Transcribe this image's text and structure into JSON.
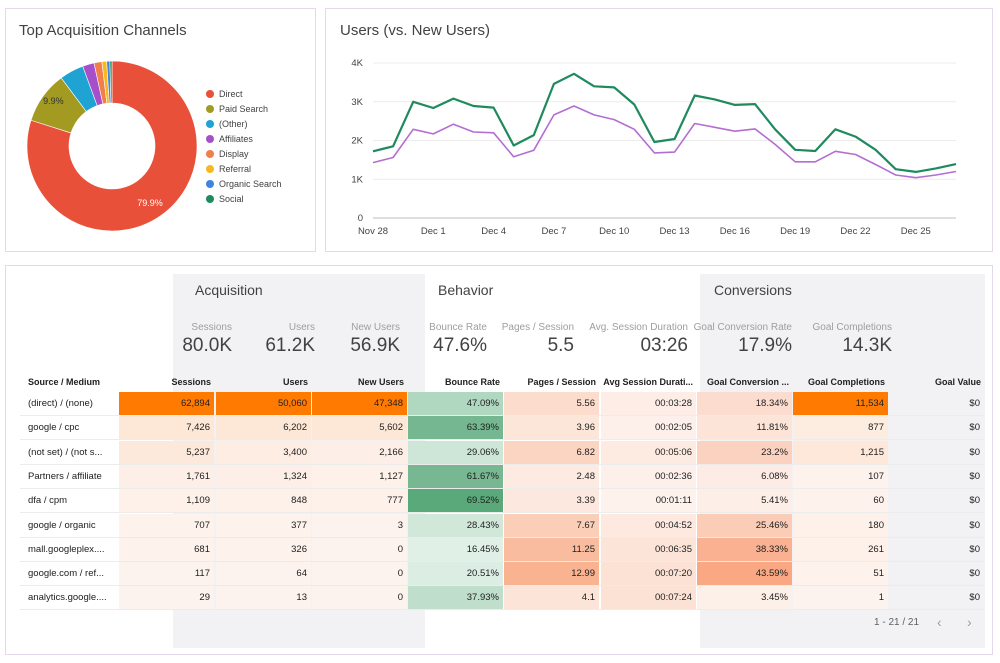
{
  "donut": {
    "title": "Top Acquisition Channels",
    "slices": [
      {
        "name": "Direct",
        "value": 79.9,
        "color": "#e8503a",
        "label": "79.9%"
      },
      {
        "name": "Paid Search",
        "value": 9.9,
        "color": "#a39a22",
        "label": "9.9%"
      },
      {
        "name": "(Other)",
        "value": 4.6,
        "color": "#1ea3d2",
        "label": ""
      },
      {
        "name": "Affiliates",
        "value": 2.2,
        "color": "#a64fc9",
        "label": ""
      },
      {
        "name": "Display",
        "value": 1.5,
        "color": "#f07f4a",
        "label": ""
      },
      {
        "name": "Referral",
        "value": 0.9,
        "color": "#f7b821",
        "label": ""
      },
      {
        "name": "Organic Search",
        "value": 0.6,
        "color": "#3f84e0",
        "label": ""
      },
      {
        "name": "Social",
        "value": 0.4,
        "color": "#1e8a5e",
        "label": ""
      }
    ]
  },
  "chart_data": {
    "type": "line",
    "title": "Users (vs. New Users)",
    "x_ticks": [
      "Nov 28",
      "Dec 1",
      "Dec 4",
      "Dec 7",
      "Dec 10",
      "Dec 13",
      "Dec 16",
      "Dec 19",
      "Dec 22",
      "Dec 25"
    ],
    "y_ticks": [
      "0",
      "1K",
      "2K",
      "3K",
      "4K"
    ],
    "ylim": [
      0,
      4000
    ],
    "grid": true,
    "series": [
      {
        "color": "#1e8a5e",
        "values": [
          1720,
          1850,
          3000,
          2840,
          3080,
          2890,
          2850,
          1870,
          2140,
          3460,
          3720,
          3400,
          3370,
          2930,
          1960,
          2040,
          3160,
          3060,
          2920,
          2940,
          2290,
          1760,
          1730,
          2290,
          2100,
          1760,
          1260,
          1190,
          1280,
          1390
        ]
      },
      {
        "color": "#b46ed1",
        "values": [
          1430,
          1560,
          2290,
          2170,
          2420,
          2220,
          2200,
          1580,
          1750,
          2660,
          2890,
          2660,
          2540,
          2290,
          1680,
          1700,
          2440,
          2340,
          2240,
          2300,
          1900,
          1450,
          1450,
          1720,
          1640,
          1380,
          1110,
          1040,
          1110,
          1200
        ]
      }
    ]
  },
  "table": {
    "sections": {
      "acquisition": "Acquisition",
      "behavior": "Behavior",
      "conversions": "Conversions"
    },
    "metrics": [
      {
        "label": "Sessions",
        "value": "80.0K"
      },
      {
        "label": "Users",
        "value": "61.2K"
      },
      {
        "label": "New Users",
        "value": "56.9K"
      },
      {
        "label": "Bounce Rate",
        "value": "47.6%"
      },
      {
        "label": "Pages / Session",
        "value": "5.5"
      },
      {
        "label": "Avg. Session Duration",
        "value": "03:26"
      },
      {
        "label": "Goal Conversion Rate",
        "value": "17.9%"
      },
      {
        "label": "Goal Completions",
        "value": "14.3K"
      }
    ],
    "headers": [
      "Source / Medium",
      "Sessions",
      "Users",
      "New Users",
      "Bounce Rate",
      "Pages / Session",
      "Avg Session Durati...",
      "Goal Conversion ...",
      "Goal Completions",
      "Goal Value"
    ],
    "rows": [
      {
        "source": "(direct) / (none)",
        "cells": [
          "62,894",
          "50,060",
          "47,348",
          "47.09%",
          "5.56",
          "00:03:28",
          "18.34%",
          "11,534",
          "$0"
        ],
        "heat": [
          1.0,
          1.0,
          1.0,
          0.4,
          0.35,
          0.12,
          0.28,
          1.0,
          0
        ]
      },
      {
        "source": "google / cpc",
        "cells": [
          "7,426",
          "6,202",
          "5,602",
          "63.39%",
          "3.96",
          "00:02:05",
          "11.81%",
          "877",
          "$0"
        ],
        "heat": [
          0.1,
          0.1,
          0.1,
          0.82,
          0.2,
          0.06,
          0.18,
          0.06,
          0
        ]
      },
      {
        "source": "(not set) / (not s...",
        "cells": [
          "5,237",
          "3,400",
          "2,166",
          "29.06%",
          "6.82",
          "00:05:06",
          "23.2%",
          "1,215",
          "$0"
        ],
        "heat": [
          0.08,
          0.05,
          0.03,
          0.2,
          0.45,
          0.2,
          0.4,
          0.09,
          0
        ]
      },
      {
        "source": "Partners / affiliate",
        "cells": [
          "1,761",
          "1,324",
          "1,127",
          "61.67%",
          "2.48",
          "00:02:36",
          "6.08%",
          "107",
          "$0"
        ],
        "heat": [
          0.03,
          0.03,
          0.02,
          0.8,
          0.12,
          0.08,
          0.08,
          0.01,
          0
        ]
      },
      {
        "source": "dfa / cpm",
        "cells": [
          "1,109",
          "848",
          "777",
          "69.52%",
          "3.39",
          "00:01:11",
          "5.41%",
          "60",
          "$0"
        ],
        "heat": [
          0.02,
          0.02,
          0.02,
          1.0,
          0.16,
          0.03,
          0.06,
          0.01,
          0
        ]
      },
      {
        "source": "google / organic",
        "cells": [
          "707",
          "377",
          "3",
          "28.43%",
          "7.67",
          "00:04:52",
          "25.46%",
          "180",
          "$0"
        ],
        "heat": [
          0.01,
          0.01,
          0,
          0.18,
          0.55,
          0.22,
          0.48,
          0.02,
          0
        ]
      },
      {
        "source": "mall.googleplex....",
        "cells": [
          "681",
          "326",
          "0",
          "16.45%",
          "11.25",
          "00:06:35",
          "38.33%",
          "261",
          "$0"
        ],
        "heat": [
          0.01,
          0.01,
          0,
          0.06,
          0.82,
          0.32,
          0.8,
          0.02,
          0
        ]
      },
      {
        "source": "google.com / ref...",
        "cells": [
          "117",
          "64",
          "0",
          "20.51%",
          "12.99",
          "00:07:20",
          "43.59%",
          "51",
          "$0"
        ],
        "heat": [
          0,
          0,
          0,
          0.1,
          0.95,
          0.38,
          0.92,
          0.01,
          0
        ]
      },
      {
        "source": "analytics.google....",
        "cells": [
          "29",
          "13",
          "0",
          "37.93%",
          "4.1",
          "00:07:24",
          "3.45%",
          "1",
          "$0"
        ],
        "heat": [
          0,
          0,
          0,
          0.3,
          0.22,
          0.38,
          0.04,
          0,
          0
        ]
      }
    ],
    "pagination": "1 - 21 / 21",
    "prev_icon": "chevron-left-icon",
    "next_icon": "chevron-right-icon"
  }
}
